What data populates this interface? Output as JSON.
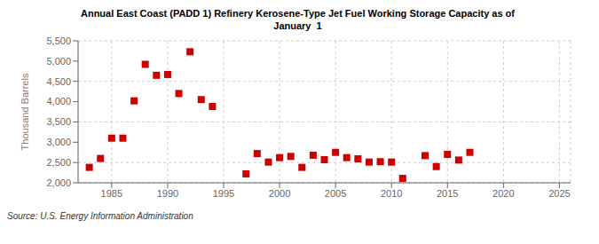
{
  "chart_data": {
    "type": "scatter",
    "title": "Annual East Coast (PADD 1) Refinery Kerosene-Type Jet Fuel Working Storage Capacity as of\nJanuary  1",
    "ylabel": "Thousand Barrels",
    "annotations": [
      "Source: U.S. Energy Information Administration"
    ],
    "color": "#cc0000",
    "marker": "square",
    "grid": true,
    "xlim": [
      1982,
      2026
    ],
    "xticks": [
      1985,
      1990,
      1995,
      2000,
      2005,
      2010,
      2015,
      2020,
      2025
    ],
    "ylim": [
      2000,
      5500
    ],
    "yticks": [
      {
        "value": 2000,
        "label": "2,000"
      },
      {
        "value": 2500,
        "label": "2,500"
      },
      {
        "value": 3000,
        "label": "3,000"
      },
      {
        "value": 3500,
        "label": "3,500"
      },
      {
        "value": 4000,
        "label": "4,000"
      },
      {
        "value": 4500,
        "label": "4,500"
      },
      {
        "value": 5000,
        "label": "5,000"
      },
      {
        "value": 5500,
        "label": "5,500"
      }
    ],
    "x": [
      1983,
      1984,
      1985,
      1986,
      1987,
      1988,
      1989,
      1990,
      1991,
      1992,
      1993,
      1994,
      1997,
      1998,
      1999,
      2000,
      2001,
      2002,
      2003,
      2004,
      2005,
      2006,
      2007,
      2008,
      2009,
      2010,
      2011,
      2013,
      2014,
      2015,
      2016,
      2017
    ],
    "values": [
      2380,
      2600,
      3100,
      3100,
      4020,
      4920,
      4650,
      4670,
      4200,
      5230,
      4050,
      3880,
      2220,
      2720,
      2510,
      2620,
      2650,
      2380,
      2680,
      2570,
      2750,
      2620,
      2590,
      2510,
      2520,
      2510,
      2110,
      2670,
      2400,
      2700,
      2560,
      2750
    ]
  }
}
